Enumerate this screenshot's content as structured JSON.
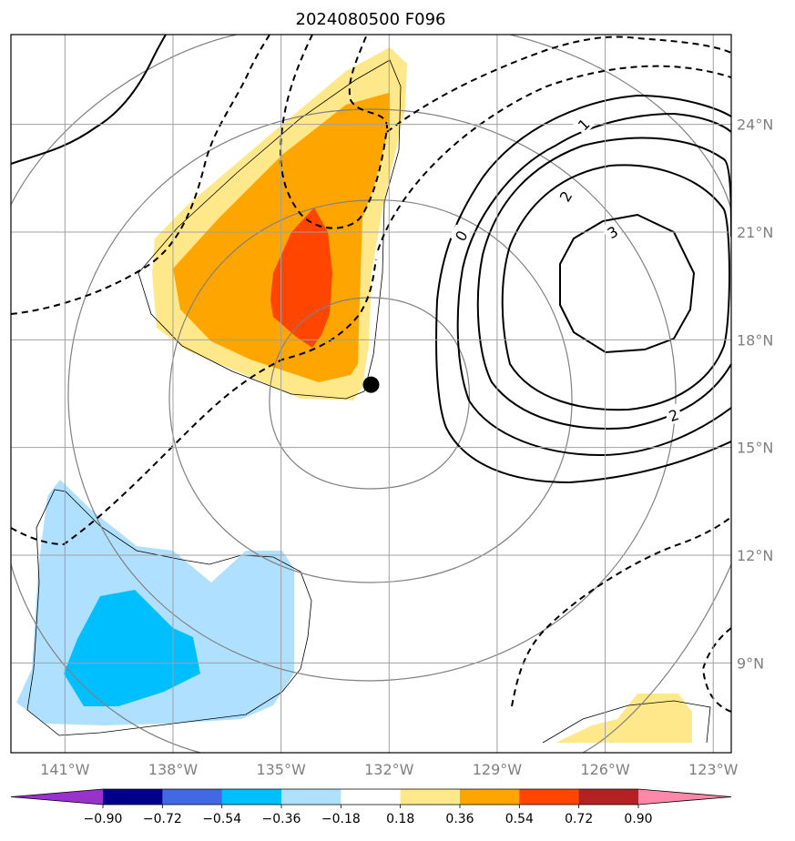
{
  "title": "2024080500 F096",
  "map": {
    "lon_range": [
      -142.5,
      -122.5
    ],
    "lat_range": [
      6.5,
      26.5
    ],
    "grid": true,
    "lon_ticks": [
      {
        "value": -141,
        "label": "141°W"
      },
      {
        "value": -138,
        "label": "138°W"
      },
      {
        "value": -135,
        "label": "135°W"
      },
      {
        "value": -132,
        "label": "132°W"
      },
      {
        "value": -129,
        "label": "129°W"
      },
      {
        "value": -126,
        "label": "126°W"
      },
      {
        "value": -123,
        "label": "123°W"
      }
    ],
    "lat_ticks": [
      {
        "value": 9,
        "label": "9°N"
      },
      {
        "value": 12,
        "label": "12°N"
      },
      {
        "value": 15,
        "label": "15°N"
      },
      {
        "value": 18,
        "label": "18°N"
      },
      {
        "value": 21,
        "label": "21°N"
      },
      {
        "value": 24,
        "label": "24°N"
      }
    ],
    "storm_center": {
      "lon": -132.5,
      "lat": 16.75
    },
    "contour_labels": [
      {
        "text": "0",
        "lon": -130.0,
        "lat": 20.9,
        "rotate": -60
      },
      {
        "text": "1",
        "lon": -126.6,
        "lat": 24.0,
        "rotate": -45
      },
      {
        "text": "2",
        "lon": -127.1,
        "lat": 22.0,
        "rotate": -60
      },
      {
        "text": "3",
        "lon": -125.8,
        "lat": 21.0,
        "rotate": -30
      },
      {
        "text": "2",
        "lon": -124.1,
        "lat": 15.9,
        "rotate": -20
      }
    ]
  },
  "colorbar": {
    "colors": [
      "#9932cc",
      "#00008b",
      "#4169e1",
      "#00bfff",
      "#b0e0ff",
      "#ffffff",
      "#ffe88a",
      "#ffa500",
      "#ff4500",
      "#b22222",
      "#ff88aa"
    ],
    "labels": [
      "−0.90",
      "−0.72",
      "−0.54",
      "−0.36",
      "−0.18",
      "0.18",
      "0.36",
      "0.54",
      "0.72",
      "0.90"
    ]
  }
}
